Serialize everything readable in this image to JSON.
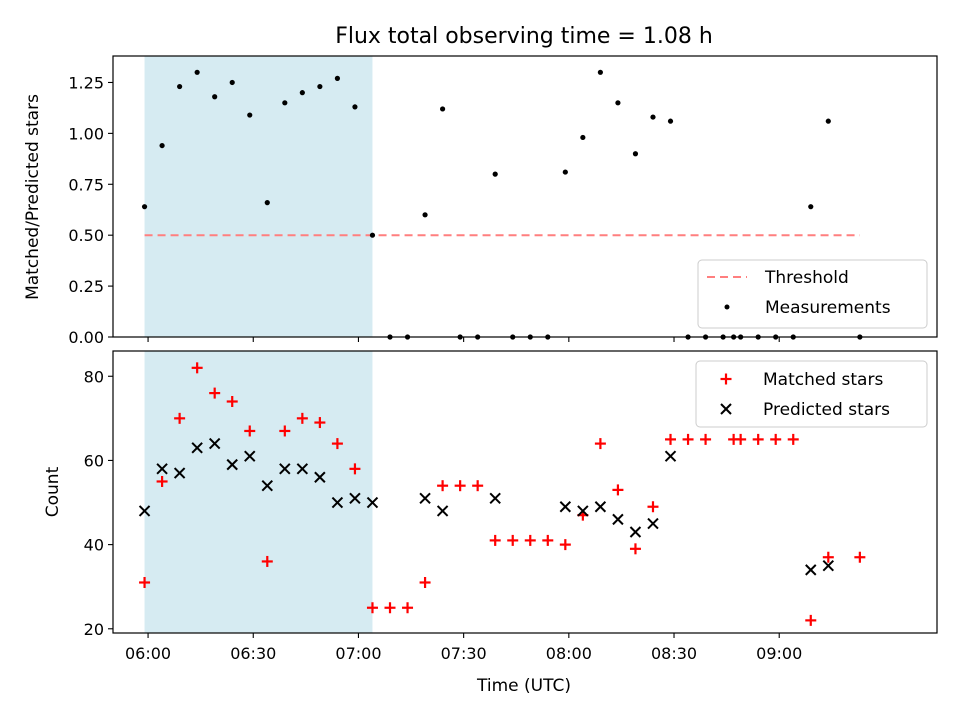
{
  "colors": {
    "band": "#add8e6",
    "threshold": "#ff7f7f",
    "measurement": "#000000",
    "matched": "#ff0000",
    "predicted": "#000000"
  },
  "chart_data": [
    {
      "type": "scatter",
      "title": "Flux total observing time = 1.08 h",
      "xlabel": "",
      "ylabel": "Matched/Predicted stars",
      "xlim": [
        "05:50",
        "09:45"
      ],
      "ylim": [
        0,
        1.38
      ],
      "yticks": [
        0.0,
        0.25,
        0.5,
        0.75,
        1.0,
        1.25
      ],
      "ytick_labels": [
        "0.00",
        "0.25",
        "0.50",
        "0.75",
        "1.00",
        "1.25"
      ],
      "shaded_band": {
        "x_start": "05:59",
        "x_end": "07:04"
      },
      "legend": {
        "placement": "lower right",
        "entries": [
          "Threshold",
          "Measurements"
        ]
      },
      "threshold": {
        "name": "Threshold",
        "y": 0.5,
        "x_start": "05:59",
        "x_end": "09:23"
      },
      "series": [
        {
          "name": "Measurements",
          "x": [
            "05:59",
            "06:04",
            "06:09",
            "06:14",
            "06:19",
            "06:24",
            "06:29",
            "06:34",
            "06:39",
            "06:44",
            "06:49",
            "06:54",
            "06:59",
            "07:04",
            "07:09",
            "07:14",
            "07:19",
            "07:24",
            "07:29",
            "07:34",
            "07:39",
            "07:44",
            "07:49",
            "07:54",
            "07:59",
            "08:04",
            "08:09",
            "08:14",
            "08:19",
            "08:24",
            "08:29",
            "08:34",
            "08:39",
            "08:44",
            "08:47",
            "08:49",
            "08:54",
            "08:59",
            "09:04",
            "09:09",
            "09:14",
            "09:23"
          ],
          "y": [
            0.64,
            0.94,
            1.23,
            1.3,
            1.18,
            1.25,
            1.09,
            0.66,
            1.15,
            1.2,
            1.23,
            1.27,
            1.13,
            0.5,
            0.0,
            0.0,
            0.6,
            1.12,
            0.0,
            0.0,
            0.8,
            0.0,
            0.0,
            0.0,
            0.81,
            0.98,
            1.3,
            1.15,
            0.9,
            1.08,
            1.06,
            0.0,
            0.0,
            0.0,
            0.0,
            0.0,
            0.0,
            0.0,
            0.0,
            0.64,
            1.06,
            0.0
          ]
        }
      ]
    },
    {
      "type": "scatter",
      "title": "",
      "xlabel": "Time (UTC)",
      "ylabel": "Count",
      "xlim": [
        "05:50",
        "09:45"
      ],
      "ylim": [
        19,
        86
      ],
      "yticks": [
        20,
        40,
        60,
        80
      ],
      "ytick_labels": [
        "20",
        "40",
        "60",
        "80"
      ],
      "xticks": [
        "06:00",
        "06:30",
        "07:00",
        "07:30",
        "08:00",
        "08:30",
        "09:00"
      ],
      "xtick_labels": [
        "06:00",
        "06:30",
        "07:00",
        "07:30",
        "08:00",
        "08:30",
        "09:00"
      ],
      "shaded_band": {
        "x_start": "05:59",
        "x_end": "07:04"
      },
      "legend": {
        "placement": "upper right",
        "entries": [
          "Matched stars",
          "Predicted stars"
        ]
      },
      "series": [
        {
          "name": "Matched stars",
          "marker": "+",
          "x": [
            "05:59",
            "06:04",
            "06:09",
            "06:14",
            "06:19",
            "06:24",
            "06:29",
            "06:34",
            "06:39",
            "06:44",
            "06:49",
            "06:54",
            "06:59",
            "07:04",
            "07:09",
            "07:14",
            "07:19",
            "07:24",
            "07:29",
            "07:34",
            "07:39",
            "07:44",
            "07:49",
            "07:54",
            "07:59",
            "08:04",
            "08:09",
            "08:14",
            "08:19",
            "08:24",
            "08:29",
            "08:34",
            "08:39",
            "08:47",
            "08:49",
            "08:54",
            "08:59",
            "09:04",
            "09:09",
            "09:14",
            "09:23"
          ],
          "y": [
            31,
            55,
            70,
            82,
            76,
            74,
            67,
            36,
            67,
            70,
            69,
            64,
            58,
            25,
            25,
            25,
            31,
            54,
            54,
            54,
            41,
            41,
            41,
            41,
            40,
            47,
            64,
            53,
            39,
            49,
            65,
            65,
            65,
            65,
            65,
            65,
            65,
            65,
            22,
            37,
            37
          ]
        },
        {
          "name": "Predicted stars",
          "marker": "x",
          "x": [
            "05:59",
            "06:04",
            "06:09",
            "06:14",
            "06:19",
            "06:24",
            "06:29",
            "06:34",
            "06:39",
            "06:44",
            "06:49",
            "06:54",
            "06:59",
            "07:04",
            "07:19",
            "07:24",
            "07:39",
            "07:59",
            "08:04",
            "08:09",
            "08:14",
            "08:19",
            "08:24",
            "08:29",
            "09:09",
            "09:14"
          ],
          "y": [
            48,
            58,
            57,
            63,
            64,
            59,
            61,
            54,
            58,
            58,
            56,
            50,
            51,
            50,
            51,
            48,
            51,
            49,
            48,
            49,
            46,
            43,
            45,
            61,
            34,
            35
          ]
        }
      ]
    }
  ]
}
